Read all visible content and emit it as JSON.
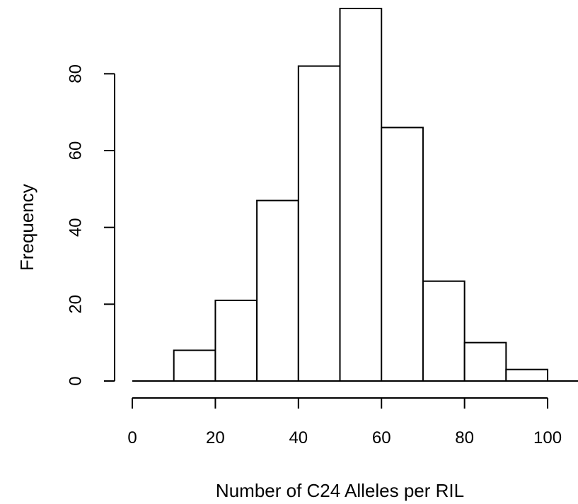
{
  "chart_data": {
    "type": "bar",
    "title": "",
    "xlabel": "Number of C24 Alleles per RIL",
    "ylabel": "Frequency",
    "bins": [
      {
        "start": 10,
        "end": 20,
        "value": 8
      },
      {
        "start": 20,
        "end": 30,
        "value": 21
      },
      {
        "start": 30,
        "end": 40,
        "value": 47
      },
      {
        "start": 40,
        "end": 50,
        "value": 82
      },
      {
        "start": 50,
        "end": 60,
        "value": 97
      },
      {
        "start": 60,
        "end": 70,
        "value": 66
      },
      {
        "start": 70,
        "end": 80,
        "value": 26
      },
      {
        "start": 80,
        "end": 90,
        "value": 10
      },
      {
        "start": 90,
        "end": 100,
        "value": 3
      }
    ],
    "xlim": [
      0,
      108
    ],
    "ylim": [
      0,
      97
    ],
    "x_ticks": [
      0,
      20,
      40,
      60,
      80,
      100
    ],
    "y_ticks": [
      0,
      20,
      40,
      60,
      80
    ],
    "grid": false,
    "legend": "none"
  }
}
